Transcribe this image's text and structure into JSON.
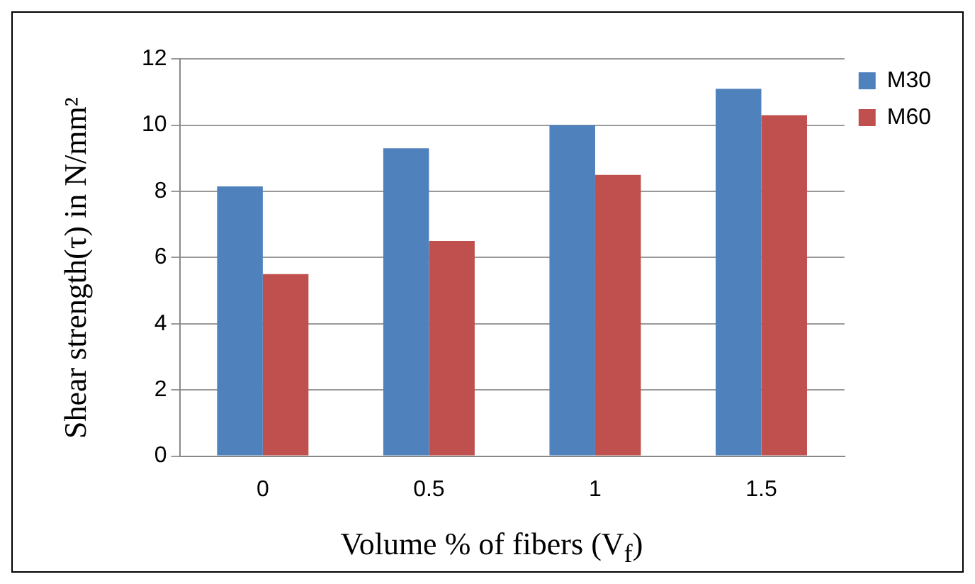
{
  "chart_data": {
    "type": "bar",
    "xlabel": "Volume % of fibers (V$_{f}$)",
    "ylabel": "Shear strength(τ) in N/mm²",
    "categories": [
      "0",
      "0.5",
      "1",
      "1.5"
    ],
    "series": [
      {
        "name": "M30",
        "color": "#4f81bd",
        "values": [
          8.15,
          9.3,
          10.0,
          11.1
        ]
      },
      {
        "name": "M60",
        "color": "#c0504d",
        "values": [
          5.5,
          6.5,
          8.5,
          10.3
        ]
      }
    ],
    "ylim": [
      0,
      12
    ],
    "yticks": [
      0,
      2,
      4,
      6,
      8,
      10,
      12
    ],
    "grid": "y",
    "legend": "right"
  }
}
